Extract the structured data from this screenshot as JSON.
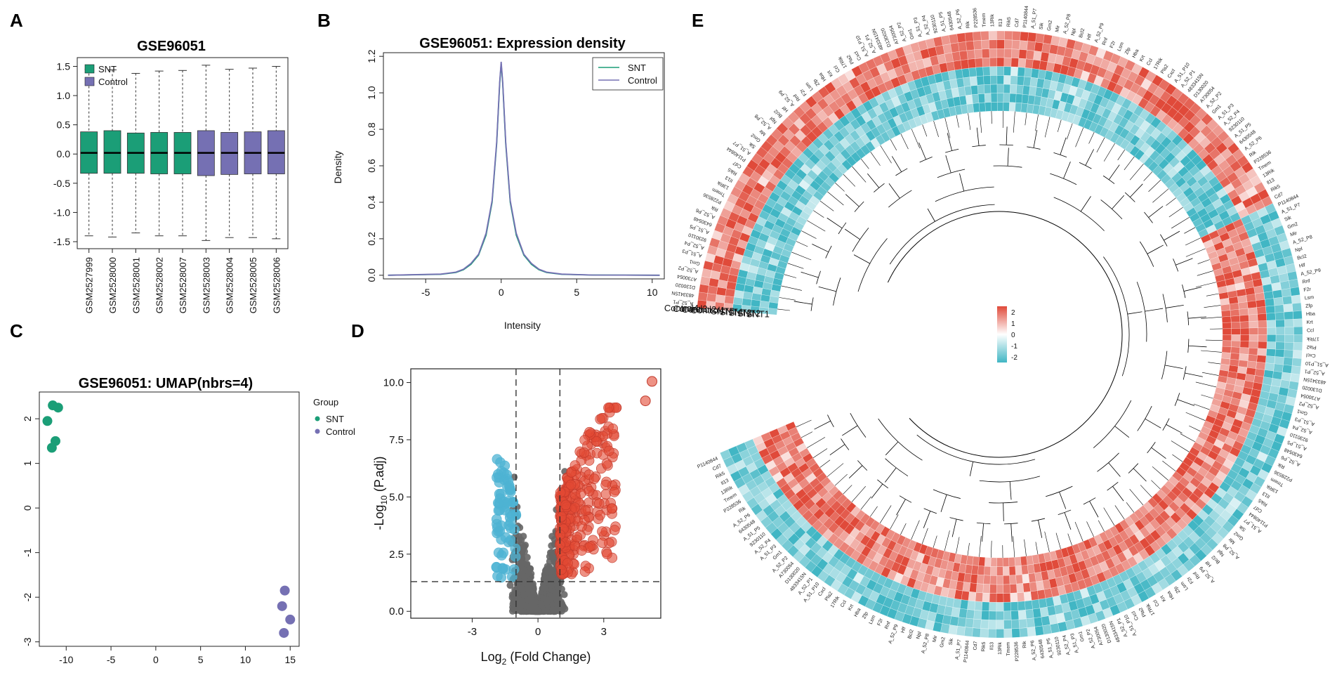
{
  "panels": {
    "A": "A",
    "B": "B",
    "C": "C",
    "D": "D",
    "E": "E"
  },
  "colors": {
    "snt": "#1b9e77",
    "control": "#7570b3",
    "up": "#e34a33",
    "down": "#4eb3d3",
    "ns": "#666666",
    "hm_high": "#e04a3a",
    "hm_low": "#41b6c4",
    "hm_mid": "#ffffff"
  },
  "chart_data": [
    {
      "type": "box",
      "panel": "A",
      "title": "GSE96051",
      "categories": [
        "GSM2527999",
        "GSM2528000",
        "GSM2528001",
        "GSM2528002",
        "GSM2528007",
        "GSM2528003",
        "GSM2528004",
        "GSM2528005",
        "GSM2528006"
      ],
      "groups": [
        "SNT",
        "SNT",
        "SNT",
        "SNT",
        "SNT",
        "Control",
        "Control",
        "Control",
        "Control"
      ],
      "q1": [
        -0.33,
        -0.33,
        -0.33,
        -0.34,
        -0.34,
        -0.37,
        -0.35,
        -0.34,
        -0.34
      ],
      "median": [
        0.02,
        0.02,
        0.02,
        0.02,
        0.02,
        0.02,
        0.02,
        0.02,
        0.02
      ],
      "q3": [
        0.38,
        0.4,
        0.36,
        0.37,
        0.37,
        0.4,
        0.37,
        0.38,
        0.4
      ],
      "whisker_low": [
        -1.4,
        -1.42,
        -1.35,
        -1.4,
        -1.4,
        -1.48,
        -1.43,
        -1.43,
        -1.45
      ],
      "whisker_high": [
        1.45,
        1.44,
        1.38,
        1.42,
        1.43,
        1.52,
        1.45,
        1.47,
        1.5
      ],
      "legend": [
        "SNT",
        "Control"
      ],
      "yticks": [
        "-1.5",
        "-1.0",
        "-0.5",
        "0.0",
        "0.5",
        "1.0",
        "1.5"
      ],
      "ylim": [
        -1.62,
        1.65
      ]
    },
    {
      "type": "line",
      "panel": "B",
      "title": "GSE96051: Expression density",
      "xlabel": "Intensity",
      "ylabel": "Density",
      "xticks": [
        "-5",
        "0",
        "5",
        "10"
      ],
      "yticks": [
        "0.0",
        "0.2",
        "0.4",
        "0.6",
        "0.8",
        "1.0",
        "1.2"
      ],
      "xlim": [
        -7.8,
        10.8
      ],
      "ylim": [
        -0.02,
        1.22
      ],
      "legend": [
        "SNT",
        "Control"
      ],
      "series": [
        {
          "name": "SNT",
          "x": [
            -7.5,
            -4,
            -3,
            -2.5,
            -2,
            -1.5,
            -1,
            -0.6,
            -0.3,
            -0.1,
            0,
            0.1,
            0.3,
            0.6,
            1,
            1.5,
            2,
            2.5,
            3,
            4,
            6,
            10.5
          ],
          "y": [
            0,
            0.005,
            0.015,
            0.03,
            0.06,
            0.11,
            0.22,
            0.4,
            0.72,
            1.05,
            1.16,
            1.05,
            0.72,
            0.4,
            0.22,
            0.11,
            0.06,
            0.03,
            0.015,
            0.005,
            0.001,
            0
          ]
        },
        {
          "name": "Control",
          "x": [
            -7.5,
            -4,
            -3,
            -2.5,
            -2,
            -1.5,
            -1,
            -0.6,
            -0.3,
            -0.1,
            0,
            0.1,
            0.3,
            0.6,
            1,
            1.5,
            2,
            2.5,
            3,
            4,
            6,
            10.5
          ],
          "y": [
            0,
            0.006,
            0.017,
            0.033,
            0.065,
            0.115,
            0.23,
            0.41,
            0.73,
            1.06,
            1.17,
            1.06,
            0.73,
            0.41,
            0.23,
            0.115,
            0.065,
            0.033,
            0.017,
            0.006,
            0.001,
            0
          ]
        }
      ]
    },
    {
      "type": "scatter",
      "panel": "C",
      "title": "GSE96051: UMAP(nbrs=4)",
      "xticks": [
        "-10",
        "-5",
        "0",
        "5",
        "10",
        "15"
      ],
      "yticks": [
        "-3",
        "-2",
        "-1",
        "0",
        "1",
        "2"
      ],
      "xlim": [
        -13,
        16
      ],
      "ylim": [
        -3.1,
        2.6
      ],
      "legend_title": "Group",
      "legend": [
        "SNT",
        "Control"
      ],
      "series": [
        {
          "name": "SNT",
          "x": [
            -11.5,
            -10.9,
            -12.1,
            -11.2,
            -11.6
          ],
          "y": [
            2.3,
            2.25,
            1.95,
            1.5,
            1.35
          ]
        },
        {
          "name": "Control",
          "x": [
            14.4,
            14.1,
            15.0,
            14.3
          ],
          "y": [
            -1.85,
            -2.2,
            -2.5,
            -2.8
          ]
        }
      ]
    },
    {
      "type": "scatter",
      "panel": "D",
      "xlabel_main": "Log",
      "xlabel_sub": "2",
      "xlabel_rest": " (Fold Change)",
      "ylabel_main": "-Log",
      "ylabel_sub": "10",
      "ylabel_rest": " (P.adj)",
      "xticks": [
        "-3",
        "0",
        "3"
      ],
      "yticks": [
        "0.0",
        "2.5",
        "5.0",
        "7.5",
        "10.0"
      ],
      "xlim": [
        -5.8,
        5.6
      ],
      "ylim": [
        -0.3,
        10.6
      ],
      "fc_cutoff": 1,
      "p_cutoff": 1.3
    },
    {
      "type": "heatmap",
      "panel": "E",
      "samples": [
        "Control4",
        "Control3",
        "Control2",
        "Control1",
        "SNT5",
        "SNT4",
        "SNT3",
        "SNT2",
        "SNT1"
      ],
      "scale_labels": [
        "2",
        "1",
        "0",
        "-1",
        "-2"
      ],
      "gene_labels": [
        "A_52_P1",
        "4833415N",
        "D130020",
        "A730054",
        "A_52_P2",
        "Gm1",
        "A_51_P3",
        "A_52_P4",
        "9230110",
        "A_51_P5",
        "6430548",
        "A_52_P6",
        "Rik",
        "P228536",
        "Tmem",
        "13Rik",
        "Il13",
        "Rik5",
        "Cd7",
        "P1140844",
        "A_51_P7",
        "Sik",
        "Gm2",
        "Mir",
        "A_52_P8",
        "Npl",
        "Bcl2",
        "Hlf",
        "A_52_P9",
        "Rnf",
        "F2r",
        "Lsm",
        "Zfp",
        "Hba",
        "Krt",
        "Ccl",
        "17Rik",
        "Pla2",
        "Cxcl",
        "A_51_P10"
      ]
    }
  ]
}
